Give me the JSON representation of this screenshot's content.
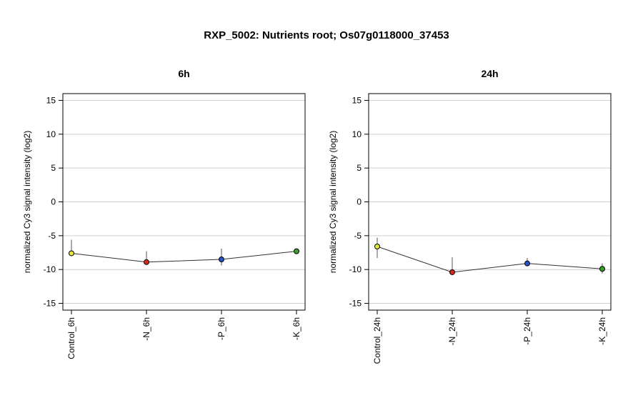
{
  "figure": {
    "title": "RXP_5002: Nutrients root; Os07g0118000_37453"
  },
  "chart_data": [
    {
      "type": "line",
      "title": "6h",
      "xlabel": "",
      "ylabel": "normalized Cy3 signal intensity (log2)",
      "ylim": [
        -16,
        16
      ],
      "yticks": [
        -15,
        -10,
        -5,
        0,
        5,
        10,
        15
      ],
      "grid": true,
      "categories": [
        "Control_6h",
        "-N_6h",
        "-P_6h",
        "-K_6h"
      ],
      "values": [
        -7.6,
        -8.9,
        -8.5,
        -7.3
      ],
      "error_low": [
        -7.6,
        -9.3,
        -9.4,
        -7.5
      ],
      "error_high": [
        -5.6,
        -7.3,
        -6.9,
        -7.1
      ],
      "point_colors": [
        "#e8e83a",
        "#d42a1e",
        "#2a52c8",
        "#3aa02a"
      ]
    },
    {
      "type": "line",
      "title": "24h",
      "xlabel": "",
      "ylabel": "normalized Cy3 signal intensity (log2)",
      "ylim": [
        -16,
        16
      ],
      "yticks": [
        -15,
        -10,
        -5,
        0,
        5,
        10,
        15
      ],
      "grid": true,
      "categories": [
        "Control_24h",
        "-N_24h",
        "-P_24h",
        "-K_24h"
      ],
      "values": [
        -6.6,
        -10.4,
        -9.1,
        -9.9
      ],
      "error_low": [
        -8.3,
        -10.7,
        -9.4,
        -10.6
      ],
      "error_high": [
        -5.3,
        -8.2,
        -8.3,
        -9.1
      ],
      "point_colors": [
        "#e8e83a",
        "#d42a1e",
        "#2a52c8",
        "#3aa02a"
      ]
    }
  ]
}
